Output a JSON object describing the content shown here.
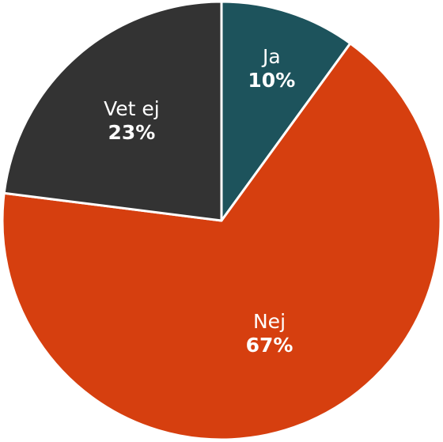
{
  "chart_data": {
    "type": "pie",
    "title": "",
    "slices": [
      {
        "label": "Ja",
        "value": 10,
        "value_label": "10%",
        "color": "#1d535c"
      },
      {
        "label": "Nej",
        "value": 67,
        "value_label": "67%",
        "color": "#d63f0f"
      },
      {
        "label": "Vet ej",
        "value": 23,
        "value_label": "23%",
        "color": "#333333"
      }
    ],
    "start_angle": "12 o'clock",
    "direction": "clockwise",
    "legend": "none",
    "labels": "inside slices"
  }
}
